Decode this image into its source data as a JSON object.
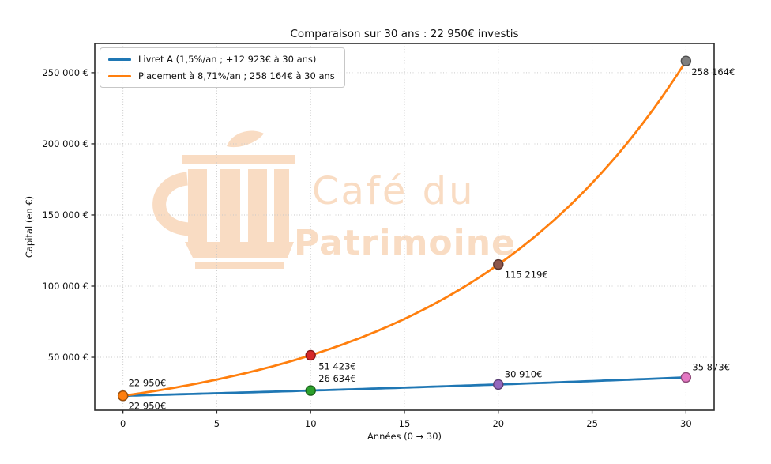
{
  "figure": {
    "background": "#ffffff",
    "watermark": {
      "line1": "Café du",
      "line2": "Patrimoine",
      "color": "#f9dcc3",
      "logo": "coffee-cup"
    }
  },
  "chart_data": {
    "type": "line",
    "title": "Comparaison sur 30 ans : 22 950€ investis",
    "xlabel": "Années (0 → 30)",
    "ylabel": "Capital (en €)",
    "xlim": [
      -1.5,
      31.5
    ],
    "ylim": [
      12800,
      270500
    ],
    "x_ticks": [
      0,
      5,
      10,
      15,
      20,
      25,
      30
    ],
    "y_ticks": [
      {
        "value": 50000,
        "label": "50 000 €"
      },
      {
        "value": 100000,
        "label": "100 000 €"
      },
      {
        "value": 150000,
        "label": "150 000 €"
      },
      {
        "value": 200000,
        "label": "200 000 €"
      },
      {
        "value": 250000,
        "label": "250 000 €"
      }
    ],
    "grid": {
      "visible": true,
      "color": "#c9c9c9",
      "style": "dotted"
    },
    "legend": {
      "position": "upper-left"
    },
    "series": [
      {
        "name": "Livret A (1,5%/an ; +12 923€ à 30 ans)",
        "color": "#1f77b4",
        "rate_label": "1,5%/an",
        "points": [
          {
            "year": 0,
            "value": 22950,
            "label": "22 950€",
            "marker_color": "#1f77b4",
            "label_offset": [
              7,
              17
            ]
          },
          {
            "year": 10,
            "value": 26634,
            "label": "26 634€",
            "marker_color": "#2ca02c",
            "label_offset": [
              10,
              -11
            ]
          },
          {
            "year": 20,
            "value": 30910,
            "label": "30 910€",
            "marker_color": "#9467bd",
            "label_offset": [
              8,
              -9
            ]
          },
          {
            "year": 30,
            "value": 35873,
            "label": "35 873€",
            "marker_color": "#e377c2",
            "label_offset": [
              8,
              -9
            ]
          }
        ]
      },
      {
        "name": "Placement à 8,71%/an ; 258 164€ à 30 ans",
        "color": "#ff7f0e",
        "rate_label": "8,71%/an",
        "points": [
          {
            "year": 0,
            "value": 22950,
            "label": "22 950€",
            "marker_color": "#ff7f0e",
            "label_offset": [
              7,
              -12
            ]
          },
          {
            "year": 10,
            "value": 51423,
            "label": "51 423€",
            "marker_color": "#d62728",
            "label_offset": [
              10,
              18
            ]
          },
          {
            "year": 20,
            "value": 115219,
            "label": "115 219€",
            "marker_color": "#8c564b",
            "label_offset": [
              8,
              17
            ]
          },
          {
            "year": 30,
            "value": 258164,
            "label": "258 164€",
            "marker_color": "#7f7f7f",
            "label_offset": [
              7,
              18
            ]
          }
        ]
      }
    ]
  }
}
